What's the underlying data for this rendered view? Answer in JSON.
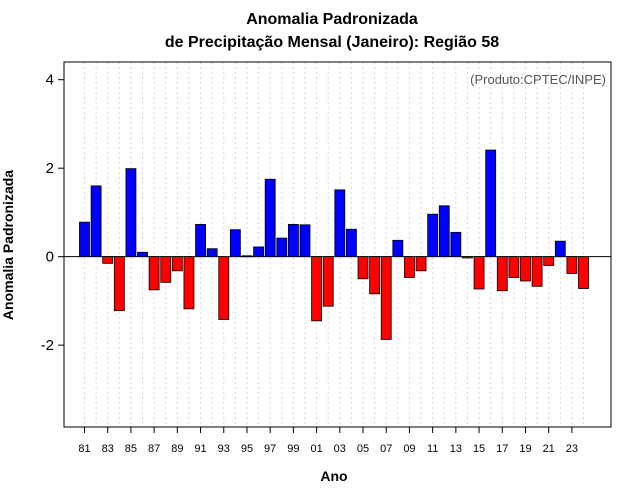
{
  "chart_data": {
    "type": "bar",
    "title_line1": "Anomalia Padronizada",
    "title_line2": "de Precipitação Mensal (Janeiro): Região 58",
    "credit": "(Produto:CPTEC/INPE)",
    "xlabel": "Ano",
    "ylabel": "Anomalia Padronizada",
    "ylim": [
      -3.85,
      4.4
    ],
    "yticks": [
      -2,
      0,
      2,
      4
    ],
    "ytick_labels": [
      "-2",
      "0",
      "2",
      "4"
    ],
    "positive_color": "#0000ff",
    "negative_color": "#ff0000",
    "categories": [
      "1981",
      "1982",
      "1983",
      "1984",
      "1985",
      "1986",
      "1987",
      "1988",
      "1989",
      "1990",
      "1991",
      "1992",
      "1993",
      "1994",
      "1995",
      "1996",
      "1997",
      "1998",
      "1999",
      "2000",
      "2001",
      "2002",
      "2003",
      "2004",
      "2005",
      "2006",
      "2007",
      "2008",
      "2009",
      "2010",
      "2011",
      "2012",
      "2013",
      "2014",
      "2015",
      "2016",
      "2017",
      "2018",
      "2019",
      "2020",
      "2021",
      "2022",
      "2023",
      "2024"
    ],
    "values": [
      0.78,
      1.6,
      -0.15,
      -1.22,
      1.99,
      0.1,
      -0.75,
      -0.58,
      -0.32,
      -1.18,
      0.73,
      0.18,
      -1.42,
      0.61,
      0.02,
      0.22,
      1.75,
      0.42,
      0.73,
      0.72,
      -1.45,
      -1.12,
      1.51,
      0.62,
      -0.5,
      -0.84,
      -1.87,
      0.37,
      -0.47,
      -0.32,
      0.96,
      1.15,
      0.55,
      -0.03,
      -0.73,
      2.41,
      -0.77,
      -0.47,
      -0.55,
      -0.67,
      -0.2,
      0.35,
      -0.38,
      -0.72
    ],
    "xtick_labels": [
      "81",
      "83",
      "85",
      "87",
      "89",
      "91",
      "93",
      "95",
      "97",
      "99",
      "01",
      "03",
      "05",
      "07",
      "09",
      "11",
      "13",
      "15",
      "17",
      "19",
      "21",
      "23"
    ]
  }
}
